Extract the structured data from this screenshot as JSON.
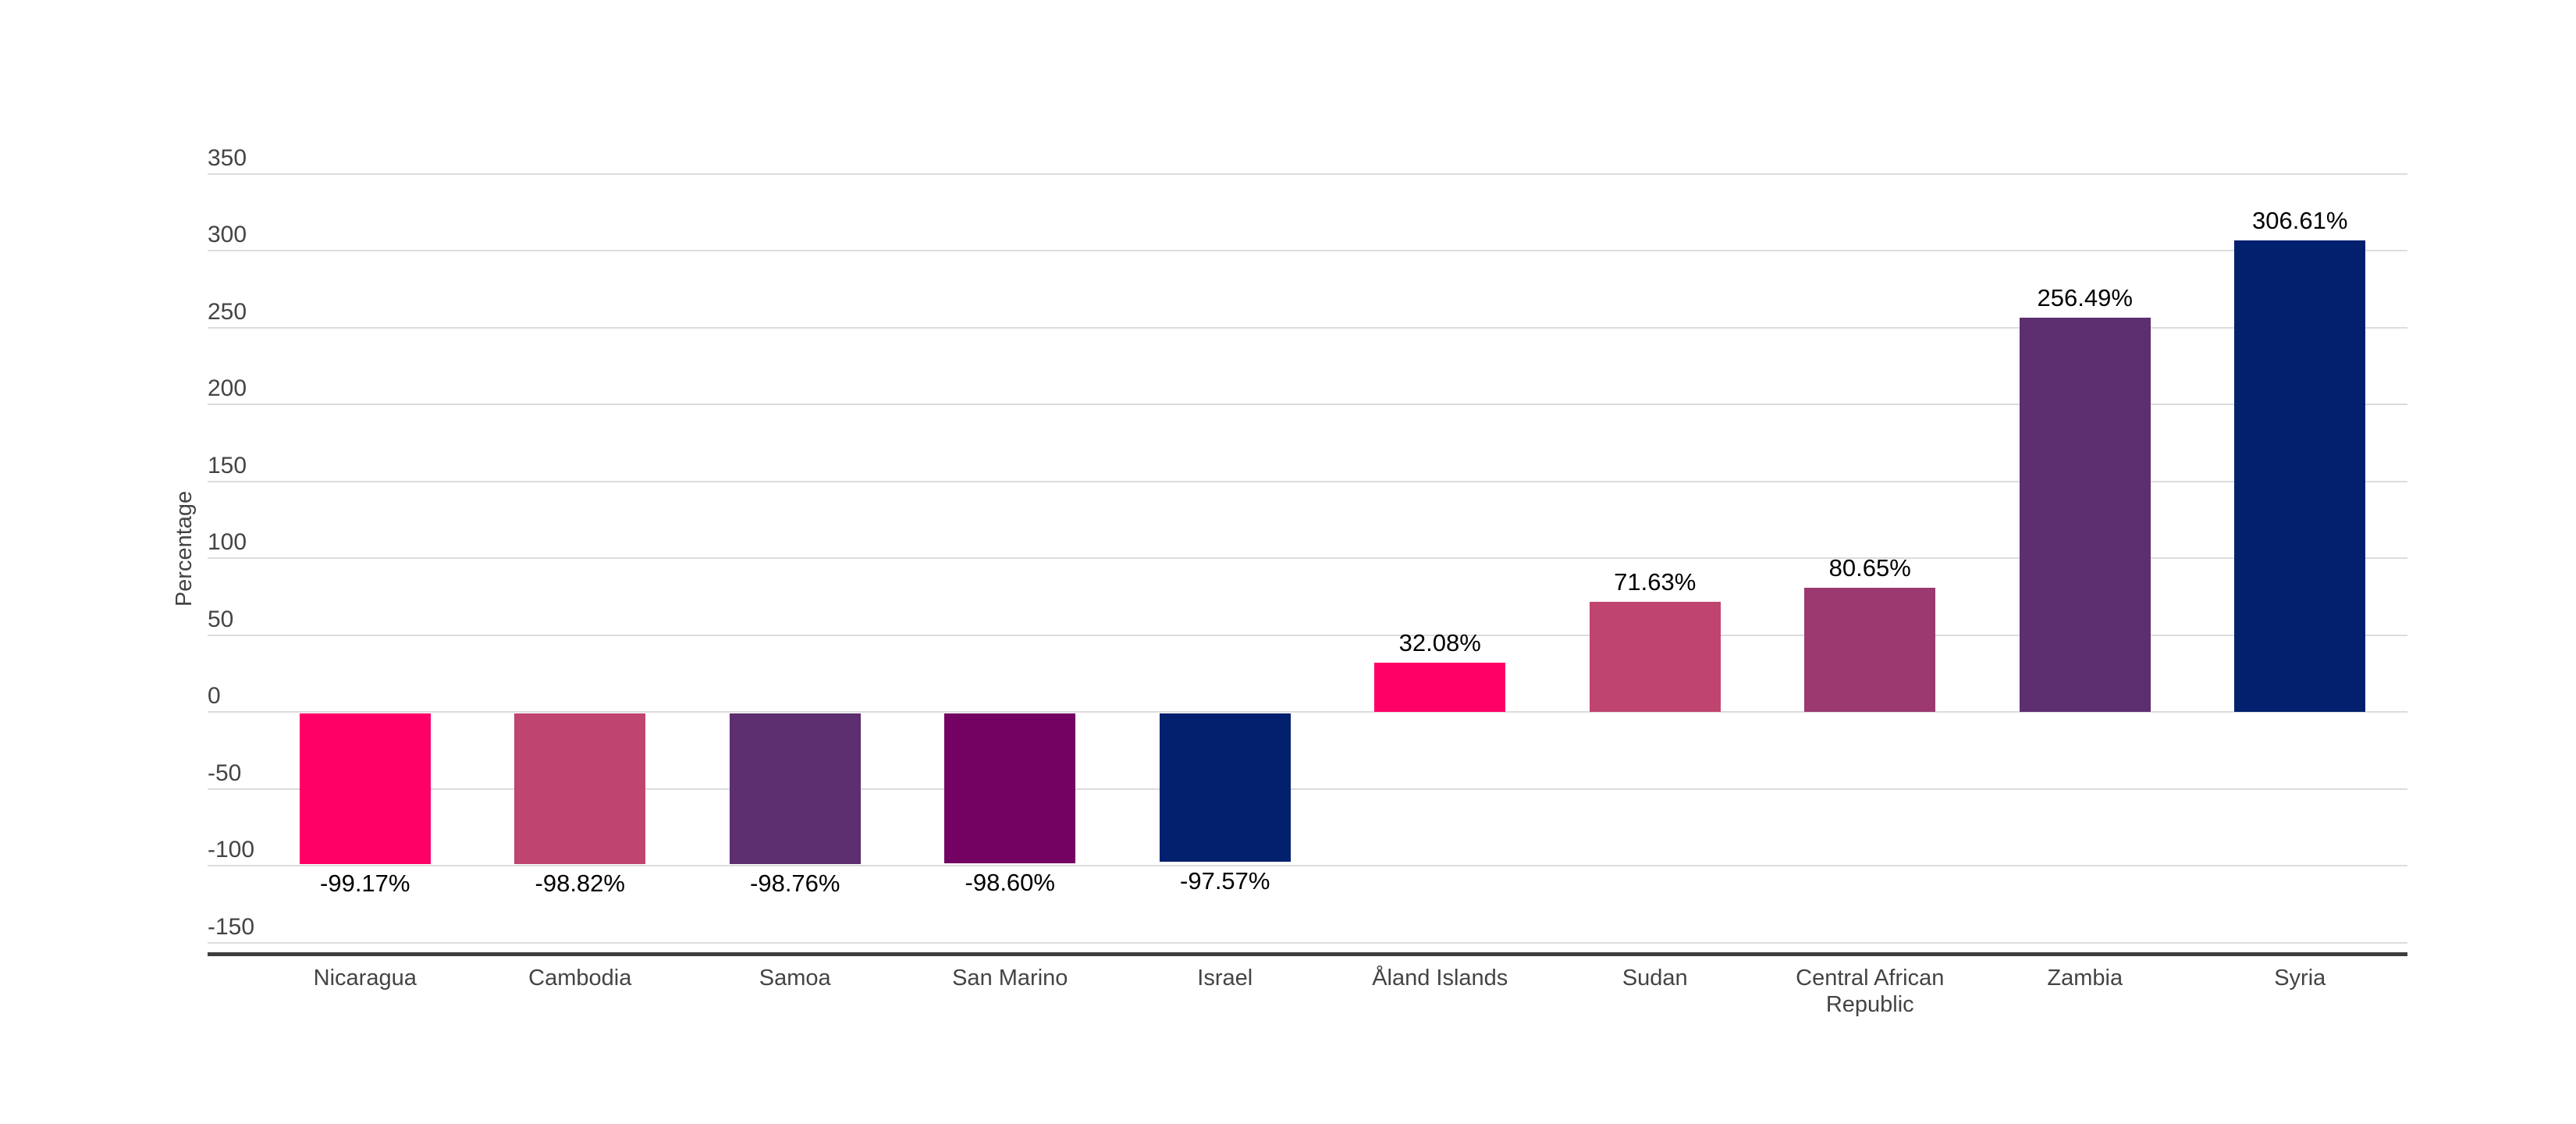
{
  "chart_data": {
    "type": "bar",
    "title": "",
    "xlabel": "",
    "ylabel": "Percentage",
    "categories": [
      "Nicaragua",
      "Cambodia",
      "Samoa",
      "San Marino",
      "Israel",
      "Åland Islands",
      "Sudan",
      "Central African Republic",
      "Zambia",
      "Syria"
    ],
    "values": [
      -99.17,
      -98.82,
      -98.76,
      -98.6,
      -97.57,
      32.08,
      71.63,
      80.65,
      256.49,
      306.61
    ],
    "value_labels": [
      "-99.17%",
      "-98.82%",
      "-98.76%",
      "-98.60%",
      "-97.57%",
      "32.08%",
      "71.63%",
      "80.65%",
      "256.49%",
      "306.61%"
    ],
    "bar_colors": [
      "#ff0066",
      "#c04470",
      "#5d2e70",
      "#730262",
      "#02206e",
      "#ff0066",
      "#c04470",
      "#9b3970",
      "#5d2e70",
      "#02206e"
    ],
    "yticks": [
      350,
      300,
      250,
      200,
      150,
      100,
      50,
      0,
      -50,
      -100,
      -150
    ],
    "ylim": [
      -150,
      350
    ],
    "grid": true,
    "legend": false,
    "style": {
      "gridline_color": "#dcdcdc",
      "axis_line_color": "#3e3e3e",
      "tick_label_color": "#444444",
      "value_label_color": "#000000",
      "background_color": "#ffffff"
    }
  }
}
